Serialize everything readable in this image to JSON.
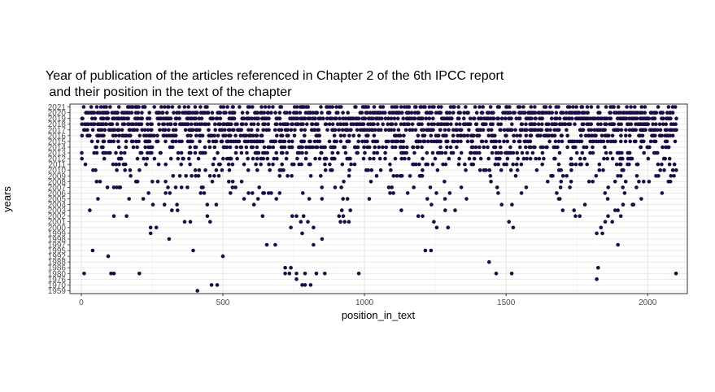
{
  "chart_data": {
    "type": "scatter",
    "title_lines": [
      "Year of publication of the articles referenced in Chapter 2 of the 6th IPCC report",
      " and their position in the text of the chapter"
    ],
    "xlabel": "position_in_text",
    "ylabel": "years",
    "xlim": [
      -40,
      2140
    ],
    "x_ticks": [
      0,
      500,
      1000,
      1500,
      2000
    ],
    "y_categories": [
      "1959",
      "1970",
      "1976",
      "1980",
      "1986",
      "1988",
      "1992",
      "1995",
      "1997",
      "1998",
      "1999",
      "2000",
      "2001",
      "2002",
      "2003",
      "2004",
      "2005",
      "2006",
      "2007",
      "2008",
      "2009",
      "2010",
      "2011",
      "2012",
      "2013",
      "2014",
      "2015",
      "2016",
      "2017",
      "2018",
      "2019",
      "2020",
      "2021"
    ],
    "y_tick_labels_shown": [
      "1959",
      "1976",
      "1986",
      "1992",
      "1997",
      "1999",
      "2001",
      "2003",
      "2005",
      "2007",
      "2009",
      "2011",
      "2013",
      "2015",
      "2017",
      "2019",
      "2021"
    ],
    "grid": "on",
    "legend": "none",
    "point_color": "#1a0b4d",
    "sparse_points": [
      {
        "x": 410,
        "y": "1959"
      },
      {
        "x": 460,
        "y": "1970"
      },
      {
        "x": 480,
        "y": "1970"
      },
      {
        "x": 780,
        "y": "1970"
      },
      {
        "x": 790,
        "y": "1970"
      },
      {
        "x": 810,
        "y": "1970"
      },
      {
        "x": 760,
        "y": "1976"
      },
      {
        "x": 1820,
        "y": "1976"
      },
      {
        "x": 10,
        "y": "1980"
      },
      {
        "x": 105,
        "y": "1980"
      },
      {
        "x": 115,
        "y": "1980"
      },
      {
        "x": 205,
        "y": "1980"
      },
      {
        "x": 720,
        "y": "1980"
      },
      {
        "x": 735,
        "y": "1980"
      },
      {
        "x": 760,
        "y": "1980"
      },
      {
        "x": 790,
        "y": "1980"
      },
      {
        "x": 830,
        "y": "1980"
      },
      {
        "x": 860,
        "y": "1980"
      },
      {
        "x": 980,
        "y": "1980"
      },
      {
        "x": 1465,
        "y": "1980"
      },
      {
        "x": 1520,
        "y": "1980"
      },
      {
        "x": 2100,
        "y": "1980"
      },
      {
        "x": 720,
        "y": "1986"
      },
      {
        "x": 740,
        "y": "1986"
      },
      {
        "x": 1825,
        "y": "1986"
      },
      {
        "x": 1440,
        "y": "1988"
      },
      {
        "x": 95,
        "y": "1992"
      },
      {
        "x": 500,
        "y": "1992"
      },
      {
        "x": 40,
        "y": "1995"
      },
      {
        "x": 395,
        "y": "1995"
      },
      {
        "x": 1215,
        "y": "1995"
      },
      {
        "x": 1235,
        "y": "1995"
      },
      {
        "x": 655,
        "y": "1997"
      },
      {
        "x": 685,
        "y": "1997"
      },
      {
        "x": 820,
        "y": "1997"
      },
      {
        "x": 1895,
        "y": "1997"
      },
      {
        "x": 310,
        "y": "1998"
      },
      {
        "x": 850,
        "y": "1998"
      },
      {
        "x": 245,
        "y": "1999"
      },
      {
        "x": 780,
        "y": "1999"
      },
      {
        "x": 1820,
        "y": "1999"
      },
      {
        "x": 1840,
        "y": "1999"
      },
      {
        "x": 245,
        "y": "2000"
      },
      {
        "x": 265,
        "y": "2000"
      },
      {
        "x": 740,
        "y": "2000"
      },
      {
        "x": 820,
        "y": "2000"
      },
      {
        "x": 1255,
        "y": "2000"
      },
      {
        "x": 1295,
        "y": "2000"
      },
      {
        "x": 1525,
        "y": "2000"
      },
      {
        "x": 1835,
        "y": "2000"
      },
      {
        "x": 365,
        "y": "2001"
      },
      {
        "x": 385,
        "y": "2001"
      },
      {
        "x": 455,
        "y": "2001"
      },
      {
        "x": 775,
        "y": "2001"
      },
      {
        "x": 800,
        "y": "2001"
      },
      {
        "x": 915,
        "y": "2001"
      },
      {
        "x": 930,
        "y": "2001"
      },
      {
        "x": 945,
        "y": "2001"
      },
      {
        "x": 1245,
        "y": "2001"
      },
      {
        "x": 1510,
        "y": "2001"
      },
      {
        "x": 1850,
        "y": "2001"
      },
      {
        "x": 1875,
        "y": "2001"
      },
      {
        "x": 115,
        "y": "2002"
      },
      {
        "x": 160,
        "y": "2002"
      },
      {
        "x": 445,
        "y": "2002"
      },
      {
        "x": 640,
        "y": "2002"
      },
      {
        "x": 745,
        "y": "2002"
      },
      {
        "x": 760,
        "y": "2002"
      },
      {
        "x": 785,
        "y": "2002"
      },
      {
        "x": 910,
        "y": "2002"
      },
      {
        "x": 925,
        "y": "2002"
      },
      {
        "x": 1190,
        "y": "2002"
      },
      {
        "x": 1205,
        "y": "2002"
      },
      {
        "x": 1745,
        "y": "2002"
      },
      {
        "x": 1760,
        "y": "2002"
      },
      {
        "x": 1860,
        "y": "2002"
      },
      {
        "x": 1905,
        "y": "2002"
      },
      {
        "x": 30,
        "y": "2003"
      },
      {
        "x": 320,
        "y": "2003"
      },
      {
        "x": 340,
        "y": "2003"
      },
      {
        "x": 920,
        "y": "2003"
      },
      {
        "x": 950,
        "y": "2003"
      },
      {
        "x": 1130,
        "y": "2003"
      },
      {
        "x": 1285,
        "y": "2003"
      },
      {
        "x": 1320,
        "y": "2003"
      },
      {
        "x": 1700,
        "y": "2003"
      },
      {
        "x": 1740,
        "y": "2003"
      },
      {
        "x": 1885,
        "y": "2003"
      },
      {
        "x": 1895,
        "y": "2003"
      }
    ]
  }
}
